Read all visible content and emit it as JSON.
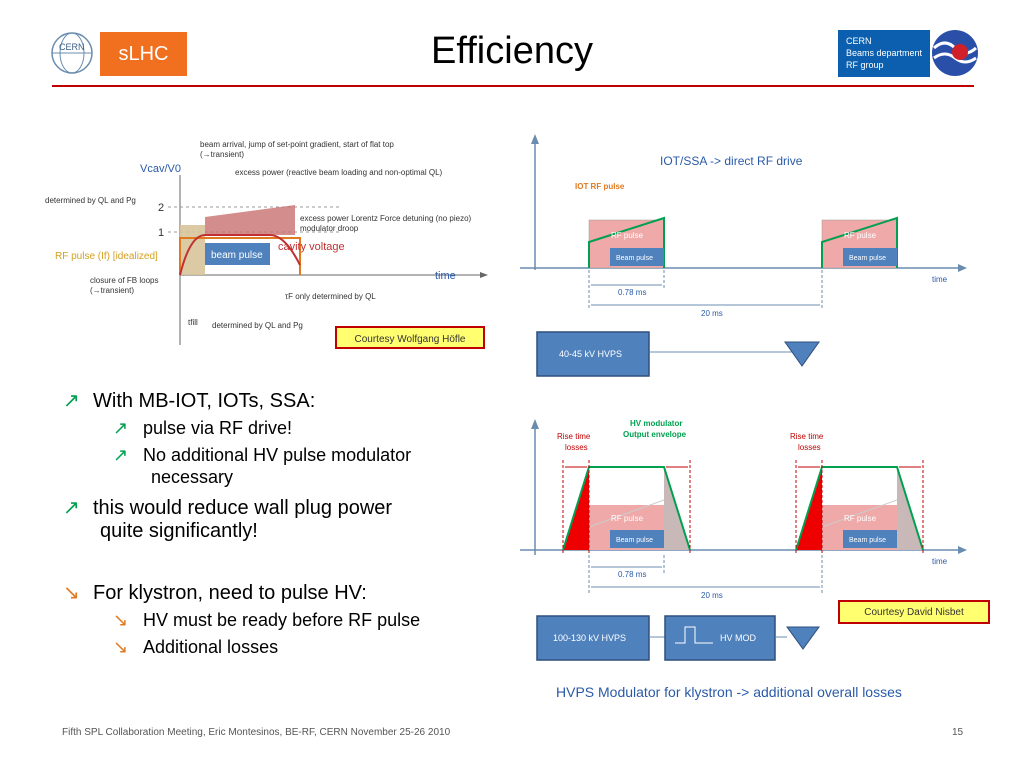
{
  "header": {
    "title": "Efficiency",
    "logo_badge": "sLHC",
    "cern_lines": [
      "CERN",
      "Beams department",
      "RF group"
    ]
  },
  "left_figure": {
    "yaxis_label": "Vcav/V0",
    "tick_2": "2",
    "tick_1": "1",
    "note_arrival": "beam arrival, jump of set-point gradient, start of flat top",
    "note_arrival2": "(→transient)",
    "note_excess": "excess power (reactive beam loading and non-optimal QL)",
    "note_det_top": "determined by QL and Pg",
    "note_lorentz": "excess power Lorentz Force detuning (no piezo)",
    "note_droop": "modulator droop",
    "rf_pulse_label": "RF pulse (If) [idealized]",
    "beam_pulse": "beam pulse",
    "cavity_voltage": "cavity voltage",
    "note_fb": "closure of FB loops",
    "note_fb2": "(→transient)",
    "time_label": "time",
    "note_tau": "τF only determined by QL",
    "tfill": "tfill",
    "note_det_bottom": "determined by QL and Pg",
    "courtesy": "Courtesy Wolfgang Höfle"
  },
  "right_top": {
    "title": "IOT/SSA -> direct RF drive",
    "iot_rf_pulse": "IOT RF pulse",
    "rf_pulse": "RF pulse",
    "beam_pulse": "Beam pulse",
    "time": "time",
    "dt_short": "0.78 ms",
    "dt_long": "20 ms",
    "hvps": "40-45 kV HVPS"
  },
  "right_bottom": {
    "hv_mod_title_1": "HV modulator",
    "hv_mod_title_2": "Output envelope",
    "rise_1": "Rise time",
    "losses": "losses",
    "rf_pulse": "RF pulse",
    "beam_pulse": "Beam pulse",
    "time": "time",
    "dt_short": "0.78 ms",
    "dt_long": "20 ms",
    "courtesy": "Courtesy David Nisbet",
    "hvps": "100-130 kV HVPS",
    "hv_mod": "HV MOD",
    "caption": "HVPS Modulator for klystron -> additional overall losses"
  },
  "bullets": {
    "b1": "With MB-IOT, IOTs, SSA:",
    "b1a": "pulse via RF drive!",
    "b1b_1": "No additional HV pulse modulator",
    "b1b_2": "necessary",
    "b2_1": "this would reduce wall plug power",
    "b2_2": "quite significantly!",
    "b3": "For klystron, need to pulse HV:",
    "b3a": "HV must be ready before RF pulse",
    "b3b": "Additional losses",
    "up_arrow": "↗",
    "down_arrow": "↘"
  },
  "footer": {
    "text": "Fifth SPL Collaboration Meeting, Eric Montesinos, BE-RF, CERN November 25-26 2010",
    "page": "15"
  },
  "colors": {
    "accent_red": "#c00000",
    "slhc_orange": "#f07020",
    "cern_blue": "#0b5fae",
    "green": "#00a050",
    "box_blue": "#4f81bd"
  }
}
